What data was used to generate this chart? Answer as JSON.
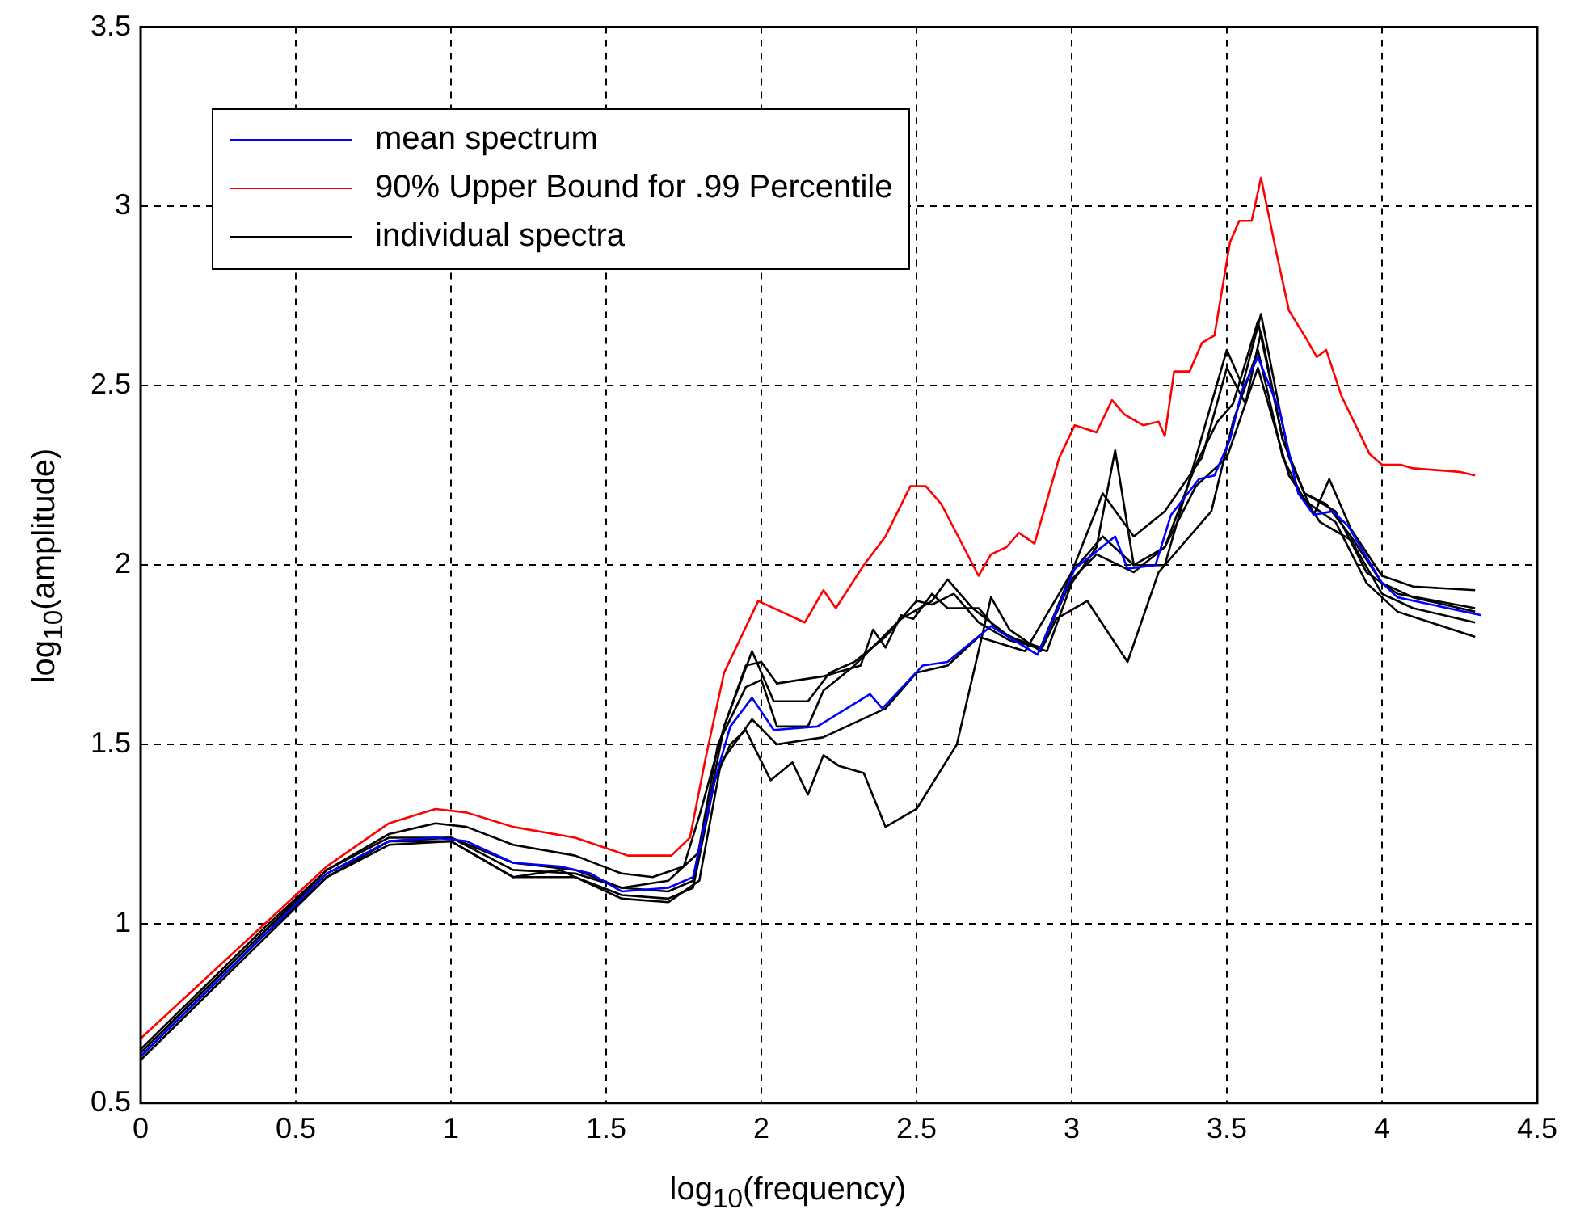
{
  "chart_data": {
    "type": "line",
    "xlabel": "log$_{10}$(frequency)",
    "ylabel": "log$_{10}$(amplitude)",
    "xlim": [
      0,
      4.5
    ],
    "ylim": [
      0.5,
      3.5
    ],
    "xticks": [
      0,
      0.5,
      1,
      1.5,
      2,
      2.5,
      3,
      3.5,
      4,
      4.5
    ],
    "yticks": [
      0.5,
      1,
      1.5,
      2,
      2.5,
      3,
      3.5
    ],
    "grid": true,
    "legend": "top left",
    "marker": "none",
    "line_style": "solid",
    "series": [
      {
        "name": "mean spectrum",
        "color": "#0000ff",
        "x": [
          0,
          0.2,
          0.4,
          0.6,
          0.8,
          0.95,
          1.05,
          1.2,
          1.35,
          1.45,
          1.55,
          1.7,
          1.78,
          1.85,
          1.9,
          1.97,
          2.04,
          2.18,
          2.35,
          2.39,
          2.52,
          2.6,
          2.67,
          2.74,
          2.89,
          3.01,
          3.14,
          3.18,
          3.27,
          3.32,
          3.41,
          3.46,
          3.51,
          3.55,
          3.6,
          3.67,
          3.73,
          3.78,
          3.84,
          3.89,
          4.0,
          4.05,
          4.32
        ],
        "values": [
          0.63,
          0.8,
          0.97,
          1.14,
          1.23,
          1.24,
          1.23,
          1.17,
          1.16,
          1.14,
          1.09,
          1.1,
          1.13,
          1.4,
          1.55,
          1.63,
          1.54,
          1.55,
          1.64,
          1.6,
          1.72,
          1.73,
          1.78,
          1.83,
          1.75,
          1.99,
          2.08,
          1.99,
          2.0,
          2.14,
          2.24,
          2.25,
          2.35,
          2.49,
          2.58,
          2.43,
          2.2,
          2.14,
          2.15,
          2.11,
          1.95,
          1.91,
          1.86
        ]
      },
      {
        "name": "90% Upper Bound for .99 Percentile",
        "color": "#ff0000",
        "x": [
          0,
          0.2,
          0.4,
          0.6,
          0.8,
          0.95,
          1.05,
          1.2,
          1.4,
          1.57,
          1.71,
          1.77,
          1.82,
          1.88,
          1.99,
          2.14,
          2.2,
          2.24,
          2.33,
          2.4,
          2.48,
          2.53,
          2.58,
          2.7,
          2.74,
          2.79,
          2.83,
          2.88,
          2.96,
          3.01,
          3.08,
          3.13,
          3.17,
          3.23,
          3.28,
          3.3,
          3.33,
          3.38,
          3.42,
          3.46,
          3.51,
          3.54,
          3.58,
          3.61,
          3.66,
          3.7,
          3.75,
          3.79,
          3.82,
          3.87,
          3.96,
          4.0,
          4.06,
          4.1,
          4.25,
          4.3
        ],
        "values": [
          0.68,
          0.84,
          1.0,
          1.16,
          1.28,
          1.32,
          1.31,
          1.27,
          1.24,
          1.19,
          1.19,
          1.24,
          1.46,
          1.7,
          1.9,
          1.84,
          1.93,
          1.88,
          2.0,
          2.08,
          2.22,
          2.22,
          2.17,
          1.97,
          2.03,
          2.05,
          2.09,
          2.06,
          2.3,
          2.39,
          2.37,
          2.46,
          2.42,
          2.39,
          2.4,
          2.36,
          2.54,
          2.54,
          2.62,
          2.64,
          2.9,
          2.96,
          2.96,
          3.08,
          2.87,
          2.71,
          2.64,
          2.58,
          2.6,
          2.47,
          2.31,
          2.28,
          2.28,
          2.27,
          2.26,
          2.25
        ]
      },
      {
        "name": "individual spectra",
        "color": "#000000",
        "x": [
          0,
          0.4,
          0.6,
          0.8,
          0.95,
          1.05,
          1.2,
          1.4,
          1.55,
          1.65,
          1.75,
          1.8,
          1.88,
          1.95,
          2.0,
          2.05,
          2.2,
          2.32,
          2.36,
          2.4,
          2.45,
          2.49,
          2.55,
          2.6,
          2.7,
          2.76,
          2.85,
          2.92,
          3.0,
          3.08,
          3.14,
          3.2,
          3.3,
          3.4,
          3.5,
          3.55,
          3.61,
          3.7,
          3.78,
          3.83,
          3.9,
          4.0,
          4.1,
          4.3
        ],
        "values": [
          0.64,
          0.98,
          1.15,
          1.25,
          1.28,
          1.27,
          1.22,
          1.19,
          1.14,
          1.13,
          1.16,
          1.3,
          1.55,
          1.72,
          1.73,
          1.67,
          1.69,
          1.72,
          1.82,
          1.77,
          1.86,
          1.85,
          1.92,
          1.88,
          1.88,
          1.82,
          1.78,
          1.76,
          1.95,
          2.05,
          2.32,
          2.0,
          2.0,
          2.3,
          2.6,
          2.5,
          2.7,
          2.3,
          2.14,
          2.24,
          2.1,
          1.97,
          1.94,
          1.93
        ]
      },
      {
        "color": "#000000",
        "x": [
          0,
          0.4,
          0.6,
          0.8,
          1.0,
          1.2,
          1.4,
          1.55,
          1.7,
          1.78,
          1.85,
          1.9,
          1.95,
          2.03,
          2.1,
          2.15,
          2.2,
          2.25,
          2.33,
          2.4,
          2.5,
          2.63,
          2.74,
          2.8,
          2.9,
          2.95,
          3.05,
          3.18,
          3.28,
          3.35,
          3.45,
          3.52,
          3.6,
          3.68,
          3.75,
          3.85,
          3.95,
          4.05,
          4.3
        ],
        "values": [
          0.63,
          0.97,
          1.13,
          1.22,
          1.23,
          1.13,
          1.13,
          1.08,
          1.07,
          1.1,
          1.4,
          1.5,
          1.54,
          1.4,
          1.45,
          1.36,
          1.47,
          1.44,
          1.42,
          1.27,
          1.32,
          1.5,
          1.91,
          1.82,
          1.76,
          1.85,
          1.9,
          1.73,
          1.98,
          2.05,
          2.15,
          2.4,
          2.6,
          2.3,
          2.18,
          2.12,
          1.95,
          1.87,
          1.8
        ]
      },
      {
        "color": "#000000",
        "x": [
          0,
          0.4,
          0.6,
          0.8,
          1.0,
          1.2,
          1.4,
          1.55,
          1.7,
          1.8,
          1.88,
          1.97,
          2.04,
          2.15,
          2.22,
          2.3,
          2.4,
          2.5,
          2.55,
          2.62,
          2.7,
          2.8,
          2.9,
          3.0,
          3.1,
          3.2,
          3.3,
          3.42,
          3.5,
          3.56,
          3.61,
          3.68,
          3.75,
          3.85,
          3.95,
          4.05,
          4.3
        ],
        "values": [
          0.65,
          0.99,
          1.15,
          1.24,
          1.24,
          1.15,
          1.14,
          1.1,
          1.12,
          1.2,
          1.55,
          1.76,
          1.62,
          1.62,
          1.7,
          1.73,
          1.8,
          1.9,
          1.89,
          1.92,
          1.84,
          1.79,
          1.77,
          1.98,
          2.2,
          2.08,
          2.15,
          2.3,
          2.55,
          2.45,
          2.65,
          2.35,
          2.2,
          2.15,
          1.98,
          1.92,
          1.88
        ]
      },
      {
        "color": "#000000",
        "x": [
          0,
          0.4,
          0.6,
          0.8,
          1.0,
          1.2,
          1.35,
          1.55,
          1.7,
          1.8,
          1.87,
          1.97,
          2.05,
          2.2,
          2.4,
          2.5,
          2.6,
          2.7,
          2.85,
          3.0,
          3.1,
          3.2,
          3.3,
          3.4,
          3.5,
          3.6,
          3.7,
          3.8,
          3.9,
          4.0,
          4.1,
          4.3
        ],
        "values": [
          0.62,
          0.96,
          1.13,
          1.23,
          1.23,
          1.13,
          1.15,
          1.07,
          1.06,
          1.12,
          1.45,
          1.57,
          1.5,
          1.52,
          1.6,
          1.7,
          1.72,
          1.8,
          1.76,
          1.98,
          2.08,
          2.0,
          2.05,
          2.22,
          2.3,
          2.55,
          2.25,
          2.12,
          2.07,
          1.92,
          1.88,
          1.84
        ]
      },
      {
        "color": "#000000",
        "x": [
          0,
          0.4,
          0.6,
          0.8,
          1.0,
          1.2,
          1.4,
          1.55,
          1.7,
          1.78,
          1.86,
          1.95,
          2.0,
          2.05,
          2.15,
          2.2,
          2.3,
          2.45,
          2.55,
          2.6,
          2.68,
          2.8,
          2.9,
          3.0,
          3.08,
          3.2,
          3.3,
          3.4,
          3.47,
          3.52,
          3.6,
          3.68,
          3.75,
          3.82,
          3.9,
          4.0,
          4.1,
          4.3
        ],
        "values": [
          0.64,
          0.98,
          1.14,
          1.23,
          1.24,
          1.17,
          1.15,
          1.1,
          1.09,
          1.12,
          1.5,
          1.66,
          1.68,
          1.55,
          1.55,
          1.65,
          1.72,
          1.85,
          1.9,
          1.96,
          1.88,
          1.8,
          1.77,
          1.96,
          2.03,
          1.98,
          2.05,
          2.28,
          2.4,
          2.45,
          2.68,
          2.35,
          2.2,
          2.17,
          2.08,
          1.95,
          1.91,
          1.87
        ]
      }
    ]
  }
}
